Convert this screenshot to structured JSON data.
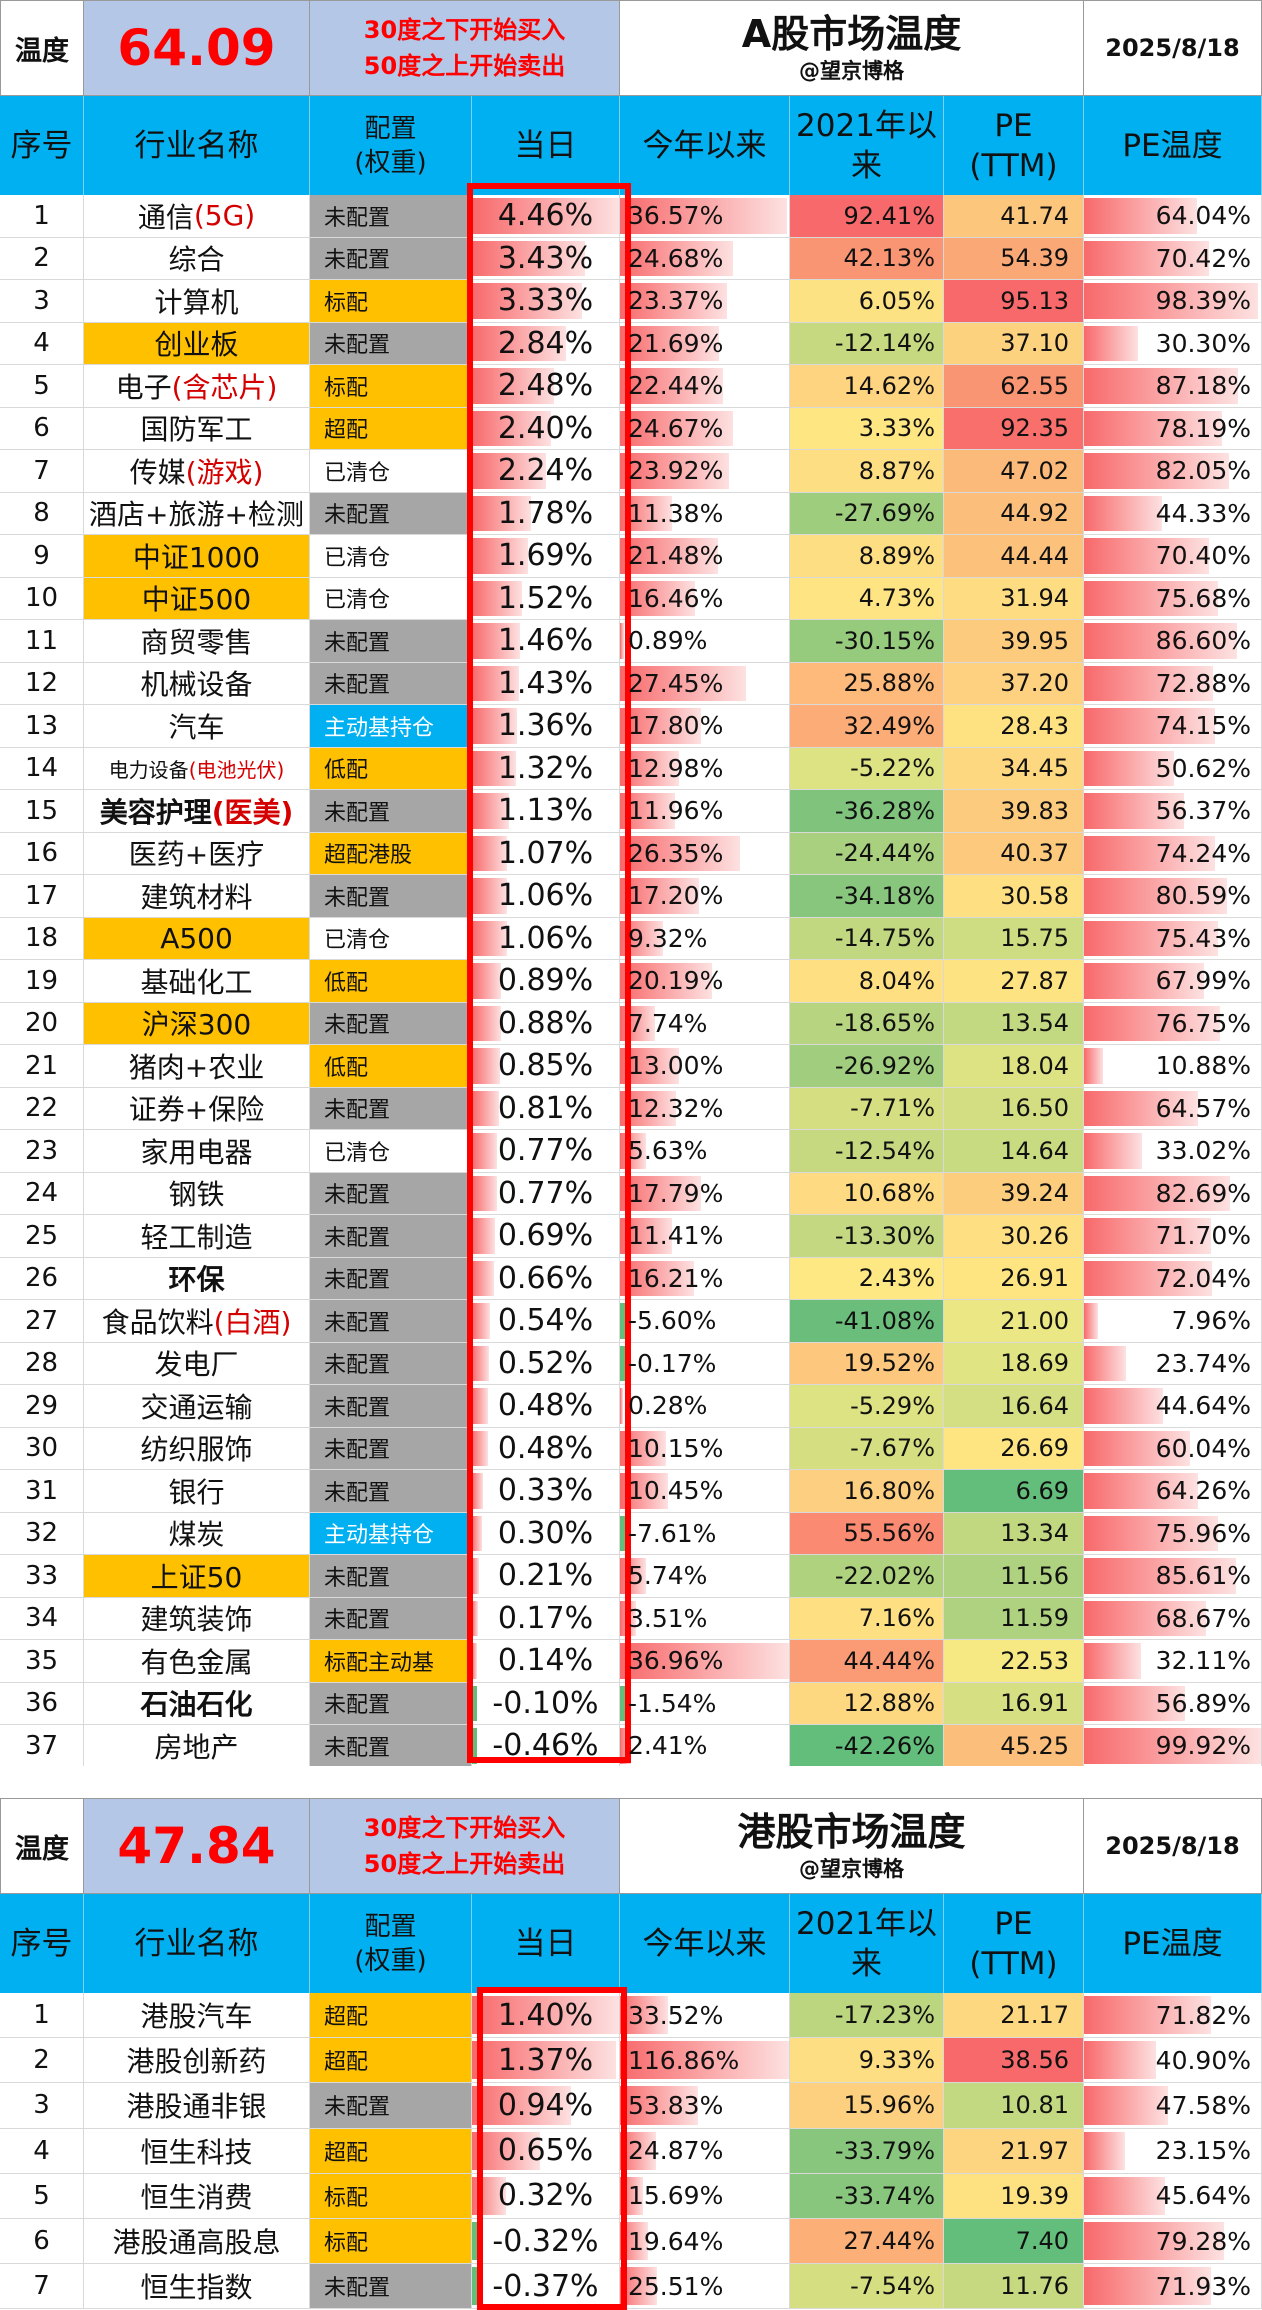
{
  "a_share": {
    "label": "温度",
    "temperature": "64.09",
    "rule_line1": "30度之下开始买入",
    "rule_line2": "50度之上开始卖出",
    "title": "A股市场温度",
    "subtitle": "@望京博格",
    "date": "2025/8/18",
    "headers": {
      "seq": "序号",
      "name": "行业名称",
      "config": "配置\n(权重)",
      "today": "当日",
      "ytd": "今年以来",
      "since2021": "2021年以来",
      "pe": "PE\n(TTM)",
      "pe_temp": "PE温度"
    },
    "rows": [
      {
        "seq": "1",
        "name": "通信",
        "name_hl": "(5G)",
        "config": "未配置",
        "config_color": "#a6a6a6",
        "today": "4.46%",
        "today_v": 4.46,
        "ytd": "36.57%",
        "ytd_v": 36.57,
        "s2021": "92.41%",
        "s2021_color": "#f8696b",
        "pe": "41.74",
        "pe_color": "#fcc77c",
        "pet": "64.04%",
        "pet_v": 64.04
      },
      {
        "seq": "2",
        "name": "综合",
        "name_hl": "",
        "config": "未配置",
        "config_color": "#a6a6a6",
        "today": "3.43%",
        "today_v": 3.43,
        "ytd": "24.68%",
        "ytd_v": 24.68,
        "s2021": "42.13%",
        "s2021_color": "#fa9573",
        "pe": "54.39",
        "pe_color": "#fba877",
        "pet": "70.42%",
        "pet_v": 70.42
      },
      {
        "seq": "3",
        "name": "计算机",
        "name_hl": "",
        "config": "标配",
        "config_color": "#ffc000",
        "today": "3.33%",
        "today_v": 3.33,
        "ytd": "23.37%",
        "ytd_v": 23.37,
        "s2021": "6.05%",
        "s2021_color": "#fde283",
        "pe": "95.13",
        "pe_color": "#f8696b",
        "pet": "98.39%",
        "pet_v": 98.39
      },
      {
        "seq": "4",
        "name": "创业板",
        "name_hl": "",
        "name_bg": "#ffc000",
        "config": "未配置",
        "config_color": "#a6a6a6",
        "today": "2.84%",
        "today_v": 2.84,
        "ytd": "21.69%",
        "ytd_v": 21.69,
        "s2021": "-12.14%",
        "s2021_color": "#c6d980",
        "pe": "37.10",
        "pe_color": "#fdd27f",
        "pet": "30.30%",
        "pet_v": 30.3
      },
      {
        "seq": "5",
        "name": "电子",
        "name_hl": "(含芯片)",
        "config": "标配",
        "config_color": "#ffc000",
        "today": "2.48%",
        "today_v": 2.48,
        "ytd": "22.44%",
        "ytd_v": 22.44,
        "s2021": "14.62%",
        "s2021_color": "#fed481",
        "pe": "62.55",
        "pe_color": "#fa9573",
        "pet": "87.18%",
        "pet_v": 87.18
      },
      {
        "seq": "6",
        "name": "国防军工",
        "name_hl": "",
        "config": "超配",
        "config_color": "#ffc000",
        "today": "2.40%",
        "today_v": 2.4,
        "ytd": "24.67%",
        "ytd_v": 24.67,
        "s2021": "3.33%",
        "s2021_color": "#fee683",
        "pe": "92.35",
        "pe_color": "#f86f6c",
        "pet": "78.19%",
        "pet_v": 78.19
      },
      {
        "seq": "7",
        "name": "传媒",
        "name_hl": "(游戏)",
        "config": "已清仓",
        "config_color": "#ffffff",
        "today": "2.24%",
        "today_v": 2.24,
        "ytd": "23.92%",
        "ytd_v": 23.92,
        "s2021": "8.87%",
        "s2021_color": "#fede82",
        "pe": "47.02",
        "pe_color": "#fbba7a",
        "pet": "82.05%",
        "pet_v": 82.05
      },
      {
        "seq": "8",
        "name": "酒店+旅游+检测",
        "name_hl": "",
        "config": "未配置",
        "config_color": "#a6a6a6",
        "today": "1.78%",
        "today_v": 1.78,
        "ytd": "11.38%",
        "ytd_v": 11.38,
        "s2021": "-27.69%",
        "s2021_color": "#9fcd7e",
        "pe": "44.92",
        "pe_color": "#fcbf7b",
        "pet": "44.33%",
        "pet_v": 44.33
      },
      {
        "seq": "9",
        "name": "中证1000",
        "name_hl": "",
        "name_bg": "#ffc000",
        "config": "已清仓",
        "config_color": "#ffffff",
        "today": "1.69%",
        "today_v": 1.69,
        "ytd": "21.48%",
        "ytd_v": 21.48,
        "s2021": "8.89%",
        "s2021_color": "#fede82",
        "pe": "44.44",
        "pe_color": "#fcc17b",
        "pet": "70.40%",
        "pet_v": 70.4
      },
      {
        "seq": "10",
        "name": "中证500",
        "name_hl": "",
        "name_bg": "#ffc000",
        "config": "已清仓",
        "config_color": "#ffffff",
        "today": "1.52%",
        "today_v": 1.52,
        "ytd": "16.46%",
        "ytd_v": 16.46,
        "s2021": "4.73%",
        "s2021_color": "#fee483",
        "pe": "31.94",
        "pe_color": "#fedc81",
        "pet": "75.68%",
        "pet_v": 75.68
      },
      {
        "seq": "11",
        "name": "商贸零售",
        "name_hl": "",
        "config": "未配置",
        "config_color": "#a6a6a6",
        "today": "1.46%",
        "today_v": 1.46,
        "ytd": "0.89%",
        "ytd_v": 0.89,
        "s2021": "-30.15%",
        "s2021_color": "#96ca7d",
        "pe": "39.95",
        "pe_color": "#fdcb7d",
        "pet": "86.60%",
        "pet_v": 86.6
      },
      {
        "seq": "12",
        "name": "机械设备",
        "name_hl": "",
        "config": "未配置",
        "config_color": "#a6a6a6",
        "today": "1.43%",
        "today_v": 1.43,
        "ytd": "27.45%",
        "ytd_v": 27.45,
        "s2021": "25.88%",
        "s2021_color": "#fdba7a",
        "pe": "37.20",
        "pe_color": "#fdd17f",
        "pet": "72.88%",
        "pet_v": 72.88
      },
      {
        "seq": "13",
        "name": "汽车",
        "name_hl": "",
        "config": "主动基持仓",
        "config_color": "#00b0f0",
        "config_fg": "#ffffff",
        "today": "1.36%",
        "today_v": 1.36,
        "ytd": "17.80%",
        "ytd_v": 17.8,
        "s2021": "32.49%",
        "s2021_color": "#fcac77",
        "pe": "28.43",
        "pe_color": "#fee282",
        "pet": "74.15%",
        "pet_v": 74.15
      },
      {
        "seq": "14",
        "name": "电力设备",
        "name_hl": "(电池光伏)",
        "name_small": true,
        "config": "低配",
        "config_color": "#ffc000",
        "today": "1.32%",
        "today_v": 1.32,
        "ytd": "12.98%",
        "ytd_v": 12.98,
        "s2021": "-5.22%",
        "s2021_color": "#dde283",
        "pe": "34.45",
        "pe_color": "#fed880",
        "pet": "50.62%",
        "pet_v": 50.62
      },
      {
        "seq": "15",
        "name": "美容护理",
        "name_hl": "(医美)",
        "name_bold": true,
        "config": "未配置",
        "config_color": "#a6a6a6",
        "today": "1.13%",
        "today_v": 1.13,
        "ytd": "11.96%",
        "ytd_v": 11.96,
        "s2021": "-36.28%",
        "s2021_color": "#7fc37c",
        "pe": "39.83",
        "pe_color": "#fdcb7d",
        "pet": "56.37%",
        "pet_v": 56.37
      },
      {
        "seq": "16",
        "name": "医药+医疗",
        "name_hl": "",
        "config": "超配港股",
        "config_color": "#ffc000",
        "today": "1.07%",
        "today_v": 1.07,
        "ytd": "26.35%",
        "ytd_v": 26.35,
        "s2021": "-24.44%",
        "s2021_color": "#a9d07f",
        "pe": "40.37",
        "pe_color": "#fdca7d",
        "pet": "74.24%",
        "pet_v": 74.24
      },
      {
        "seq": "17",
        "name": "建筑材料",
        "name_hl": "",
        "config": "未配置",
        "config_color": "#a6a6a6",
        "today": "1.06%",
        "today_v": 1.06,
        "ytd": "17.20%",
        "ytd_v": 17.2,
        "s2021": "-34.18%",
        "s2021_color": "#88c67d",
        "pe": "30.58",
        "pe_color": "#fedf82",
        "pet": "80.59%",
        "pet_v": 80.59
      },
      {
        "seq": "18",
        "name": "A500",
        "name_hl": "",
        "name_bg": "#ffc000",
        "config": "已清仓",
        "config_color": "#ffffff",
        "today": "1.06%",
        "today_v": 1.06,
        "ytd": "9.32%",
        "ytd_v": 9.32,
        "s2021": "-14.75%",
        "s2021_color": "#c1d881",
        "pe": "15.75",
        "pe_color": "#cfdd82",
        "pet": "75.43%",
        "pet_v": 75.43
      },
      {
        "seq": "19",
        "name": "基础化工",
        "name_hl": "",
        "config": "低配",
        "config_color": "#ffc000",
        "today": "0.89%",
        "today_v": 0.89,
        "ytd": "20.19%",
        "ytd_v": 20.19,
        "s2021": "8.04%",
        "s2021_color": "#fedf82",
        "pe": "27.87",
        "pe_color": "#fee382",
        "pet": "67.99%",
        "pet_v": 67.99
      },
      {
        "seq": "20",
        "name": "沪深300",
        "name_hl": "",
        "name_bg": "#ffc000",
        "config": "未配置",
        "config_color": "#a6a6a6",
        "today": "0.88%",
        "today_v": 0.88,
        "ytd": "7.74%",
        "ytd_v": 7.74,
        "s2021": "-18.65%",
        "s2021_color": "#b7d480",
        "pe": "13.54",
        "pe_color": "#c2d881",
        "pet": "76.75%",
        "pet_v": 76.75
      },
      {
        "seq": "21",
        "name": "猪肉+农业",
        "name_hl": "",
        "config": "低配",
        "config_color": "#ffc000",
        "today": "0.85%",
        "today_v": 0.85,
        "ytd": "13.00%",
        "ytd_v": 13.0,
        "s2021": "-26.92%",
        "s2021_color": "#a1ce7e",
        "pe": "18.04",
        "pe_color": "#dde383",
        "pet": "10.88%",
        "pet_v": 10.88
      },
      {
        "seq": "22",
        "name": "证券+保险",
        "name_hl": "",
        "config": "未配置",
        "config_color": "#a6a6a6",
        "today": "0.81%",
        "today_v": 0.81,
        "ytd": "12.32%",
        "ytd_v": 12.32,
        "s2021": "-7.71%",
        "s2021_color": "#d5df82",
        "pe": "16.50",
        "pe_color": "#d3de82",
        "pet": "64.57%",
        "pet_v": 64.57
      },
      {
        "seq": "23",
        "name": "家用电器",
        "name_hl": "",
        "config": "已清仓",
        "config_color": "#ffffff",
        "today": "0.77%",
        "today_v": 0.77,
        "ytd": "5.63%",
        "ytd_v": 5.63,
        "s2021": "-12.54%",
        "s2021_color": "#c6d980",
        "pe": "14.64",
        "pe_color": "#c9db81",
        "pet": "33.02%",
        "pet_v": 33.02
      },
      {
        "seq": "24",
        "name": "钢铁",
        "name_hl": "",
        "config": "未配置",
        "config_color": "#a6a6a6",
        "today": "0.77%",
        "today_v": 0.77,
        "ytd": "17.79%",
        "ytd_v": 17.79,
        "s2021": "10.68%",
        "s2021_color": "#fedb82",
        "pe": "39.24",
        "pe_color": "#fdcd7e",
        "pet": "82.69%",
        "pet_v": 82.69
      },
      {
        "seq": "25",
        "name": "轻工制造",
        "name_hl": "",
        "config": "未配置",
        "config_color": "#a6a6a6",
        "today": "0.69%",
        "today_v": 0.69,
        "ytd": "11.41%",
        "ytd_v": 11.41,
        "s2021": "-13.30%",
        "s2021_color": "#c4d881",
        "pe": "30.26",
        "pe_color": "#fedf82",
        "pet": "71.70%",
        "pet_v": 71.7
      },
      {
        "seq": "26",
        "name": "环保",
        "name_hl": "",
        "name_bold": true,
        "config": "未配置",
        "config_color": "#a6a6a6",
        "today": "0.66%",
        "today_v": 0.66,
        "ytd": "16.21%",
        "ytd_v": 16.21,
        "s2021": "2.43%",
        "s2021_color": "#fee883",
        "pe": "26.91",
        "pe_color": "#fee582",
        "pet": "72.04%",
        "pet_v": 72.04
      },
      {
        "seq": "27",
        "name": "食品饮料",
        "name_hl": "(白酒)",
        "config": "未配置",
        "config_color": "#a6a6a6",
        "today": "0.54%",
        "today_v": 0.54,
        "ytd": "-5.60%",
        "ytd_v": -5.6,
        "s2021": "-41.08%",
        "s2021_color": "#6bbd7b",
        "pe": "21.00",
        "pe_color": "#ebe784",
        "pet": "7.96%",
        "pet_v": 7.96
      },
      {
        "seq": "28",
        "name": "发电厂",
        "name_hl": "",
        "config": "未配置",
        "config_color": "#a6a6a6",
        "today": "0.52%",
        "today_v": 0.52,
        "ytd": "-0.17%",
        "ytd_v": -0.17,
        "s2021": "19.52%",
        "s2021_color": "#fdc87d",
        "pe": "18.69",
        "pe_color": "#e1e483",
        "pet": "23.74%",
        "pet_v": 23.74
      },
      {
        "seq": "29",
        "name": "交通运输",
        "name_hl": "",
        "config": "未配置",
        "config_color": "#a6a6a6",
        "today": "0.48%",
        "today_v": 0.48,
        "ytd": "0.28%",
        "ytd_v": 0.28,
        "s2021": "-5.29%",
        "s2021_color": "#dde283",
        "pe": "16.64",
        "pe_color": "#d4de82",
        "pet": "44.64%",
        "pet_v": 44.64
      },
      {
        "seq": "30",
        "name": "纺织服饰",
        "name_hl": "",
        "config": "未配置",
        "config_color": "#a6a6a6",
        "today": "0.48%",
        "today_v": 0.48,
        "ytd": "10.15%",
        "ytd_v": 10.15,
        "s2021": "-7.67%",
        "s2021_color": "#d5df82",
        "pe": "26.69",
        "pe_color": "#fee582",
        "pet": "60.04%",
        "pet_v": 60.04
      },
      {
        "seq": "31",
        "name": "银行",
        "name_hl": "",
        "config": "未配置",
        "config_color": "#a6a6a6",
        "today": "0.33%",
        "today_v": 0.33,
        "ytd": "10.45%",
        "ytd_v": 10.45,
        "s2021": "16.80%",
        "s2021_color": "#fdcf80",
        "pe": "6.69",
        "pe_color": "#63be7b",
        "pet": "64.26%",
        "pet_v": 64.26
      },
      {
        "seq": "32",
        "name": "煤炭",
        "name_hl": "",
        "config": "主动基持仓",
        "config_color": "#00b0f0",
        "config_fg": "#ffffff",
        "today": "0.30%",
        "today_v": 0.3,
        "ytd": "-7.61%",
        "ytd_v": -7.61,
        "s2021": "55.56%",
        "s2021_color": "#fa8a71",
        "pe": "13.34",
        "pe_color": "#c1d881",
        "pet": "75.96%",
        "pet_v": 75.96
      },
      {
        "seq": "33",
        "name": "上证50",
        "name_hl": "",
        "name_bg": "#ffc000",
        "config": "未配置",
        "config_color": "#a6a6a6",
        "today": "0.21%",
        "today_v": 0.21,
        "ytd": "5.74%",
        "ytd_v": 5.74,
        "s2021": "-22.02%",
        "s2021_color": "#afd27f",
        "pe": "11.56",
        "pe_color": "#aed27f",
        "pet": "85.61%",
        "pet_v": 85.61
      },
      {
        "seq": "34",
        "name": "建筑装饰",
        "name_hl": "",
        "config": "未配置",
        "config_color": "#a6a6a6",
        "today": "0.17%",
        "today_v": 0.17,
        "ytd": "3.51%",
        "ytd_v": 3.51,
        "s2021": "7.16%",
        "s2021_color": "#fee082",
        "pe": "11.59",
        "pe_color": "#aed27f",
        "pet": "68.67%",
        "pet_v": 68.67
      },
      {
        "seq": "35",
        "name": "有色金属",
        "name_hl": "",
        "config": "标配主动基",
        "config_color": "#ffc000",
        "today": "0.14%",
        "today_v": 0.14,
        "ytd": "36.96%",
        "ytd_v": 36.96,
        "s2021": "44.44%",
        "s2021_color": "#fb9b75",
        "pe": "22.53",
        "pe_color": "#f6e984",
        "pet": "32.11%",
        "pet_v": 32.11
      },
      {
        "seq": "36",
        "name": "石油石化",
        "name_hl": "",
        "name_bold": true,
        "config": "未配置",
        "config_color": "#a6a6a6",
        "today": "-0.10%",
        "today_v": -0.1,
        "ytd": "-1.54%",
        "ytd_v": -1.54,
        "s2021": "12.88%",
        "s2021_color": "#fed881",
        "pe": "16.91",
        "pe_color": "#d6df82",
        "pet": "56.89%",
        "pet_v": 56.89
      },
      {
        "seq": "37",
        "name": "房地产",
        "name_hl": "",
        "config": "未配置",
        "config_color": "#a6a6a6",
        "today": "-0.46%",
        "today_v": -0.46,
        "ytd": "2.41%",
        "ytd_v": 2.41,
        "s2021": "-42.26%",
        "s2021_color": "#63be7b",
        "pe": "45.25",
        "pe_color": "#fcbe7b",
        "pet": "99.92%",
        "pet_v": 99.92
      }
    ]
  },
  "hk_share": {
    "label": "温度",
    "temperature": "47.84",
    "rule_line1": "30度之下开始买入",
    "rule_line2": "50度之上开始卖出",
    "title": "港股市场温度",
    "subtitle": "@望京博格",
    "date": "2025/8/18",
    "headers": {
      "seq": "序号",
      "name": "行业名称",
      "config": "配置\n(权重)",
      "today": "当日",
      "ytd": "今年以来",
      "since2021": "2021年以来",
      "pe": "PE\n(TTM)",
      "pe_temp": "PE温度"
    },
    "rows": [
      {
        "seq": "1",
        "name": "港股汽车",
        "name_hl": "",
        "config": "超配",
        "config_color": "#ffc000",
        "today": "1.40%",
        "today_v": 1.4,
        "ytd": "33.52%",
        "ytd_v": 33.52,
        "s2021": "-17.23%",
        "s2021_color": "#bcd680",
        "pe": "21.17",
        "pe_color": "#fdd880",
        "pet": "71.82%",
        "pet_v": 71.82
      },
      {
        "seq": "2",
        "name": "港股创新药",
        "name_hl": "",
        "config": "超配",
        "config_color": "#ffc000",
        "today": "1.37%",
        "today_v": 1.37,
        "ytd": "116.86%",
        "ytd_v": 116.86,
        "s2021": "9.33%",
        "s2021_color": "#fede82",
        "pe": "38.56",
        "pe_color": "#f8696b",
        "pet": "40.90%",
        "pet_v": 40.9
      },
      {
        "seq": "3",
        "name": "港股通非银",
        "name_hl": "",
        "config": "未配置",
        "config_color": "#a6a6a6",
        "today": "0.94%",
        "today_v": 0.94,
        "ytd": "53.83%",
        "ytd_v": 53.83,
        "s2021": "15.96%",
        "s2021_color": "#fdd07f",
        "pe": "10.81",
        "pe_color": "#c2d881",
        "pet": "47.58%",
        "pet_v": 47.58
      },
      {
        "seq": "4",
        "name": "恒生科技",
        "name_hl": "",
        "config": "超配",
        "config_color": "#ffc000",
        "today": "0.65%",
        "today_v": 0.65,
        "ytd": "24.87%",
        "ytd_v": 24.87,
        "s2021": "-33.79%",
        "s2021_color": "#88c67d",
        "pe": "21.97",
        "pe_color": "#fdd47f",
        "pet": "23.15%",
        "pet_v": 23.15
      },
      {
        "seq": "5",
        "name": "恒生消费",
        "name_hl": "",
        "config": "标配",
        "config_color": "#ffc000",
        "today": "0.32%",
        "today_v": 0.32,
        "ytd": "15.69%",
        "ytd_v": 15.69,
        "s2021": "-33.74%",
        "s2021_color": "#88c67d",
        "pe": "19.39",
        "pe_color": "#fee282",
        "pet": "45.64%",
        "pet_v": 45.64
      },
      {
        "seq": "6",
        "name": "港股通高股息",
        "name_hl": "",
        "config": "标配",
        "config_color": "#ffc000",
        "today": "-0.32%",
        "today_v": -0.32,
        "ytd": "19.64%",
        "ytd_v": 19.64,
        "s2021": "27.44%",
        "s2021_color": "#fcb078",
        "pe": "7.40",
        "pe_color": "#63be7b",
        "pet": "79.28%",
        "pet_v": 79.28
      },
      {
        "seq": "7",
        "name": "恒生指数",
        "name_hl": "",
        "config": "未配置",
        "config_color": "#a6a6a6",
        "today": "-0.37%",
        "today_v": -0.37,
        "ytd": "25.51%",
        "ytd_v": 25.51,
        "s2021": "-7.54%",
        "s2021_color": "#d5df82",
        "pe": "11.76",
        "pe_color": "#c6d980",
        "pet": "71.93%",
        "pet_v": 71.93
      }
    ]
  }
}
